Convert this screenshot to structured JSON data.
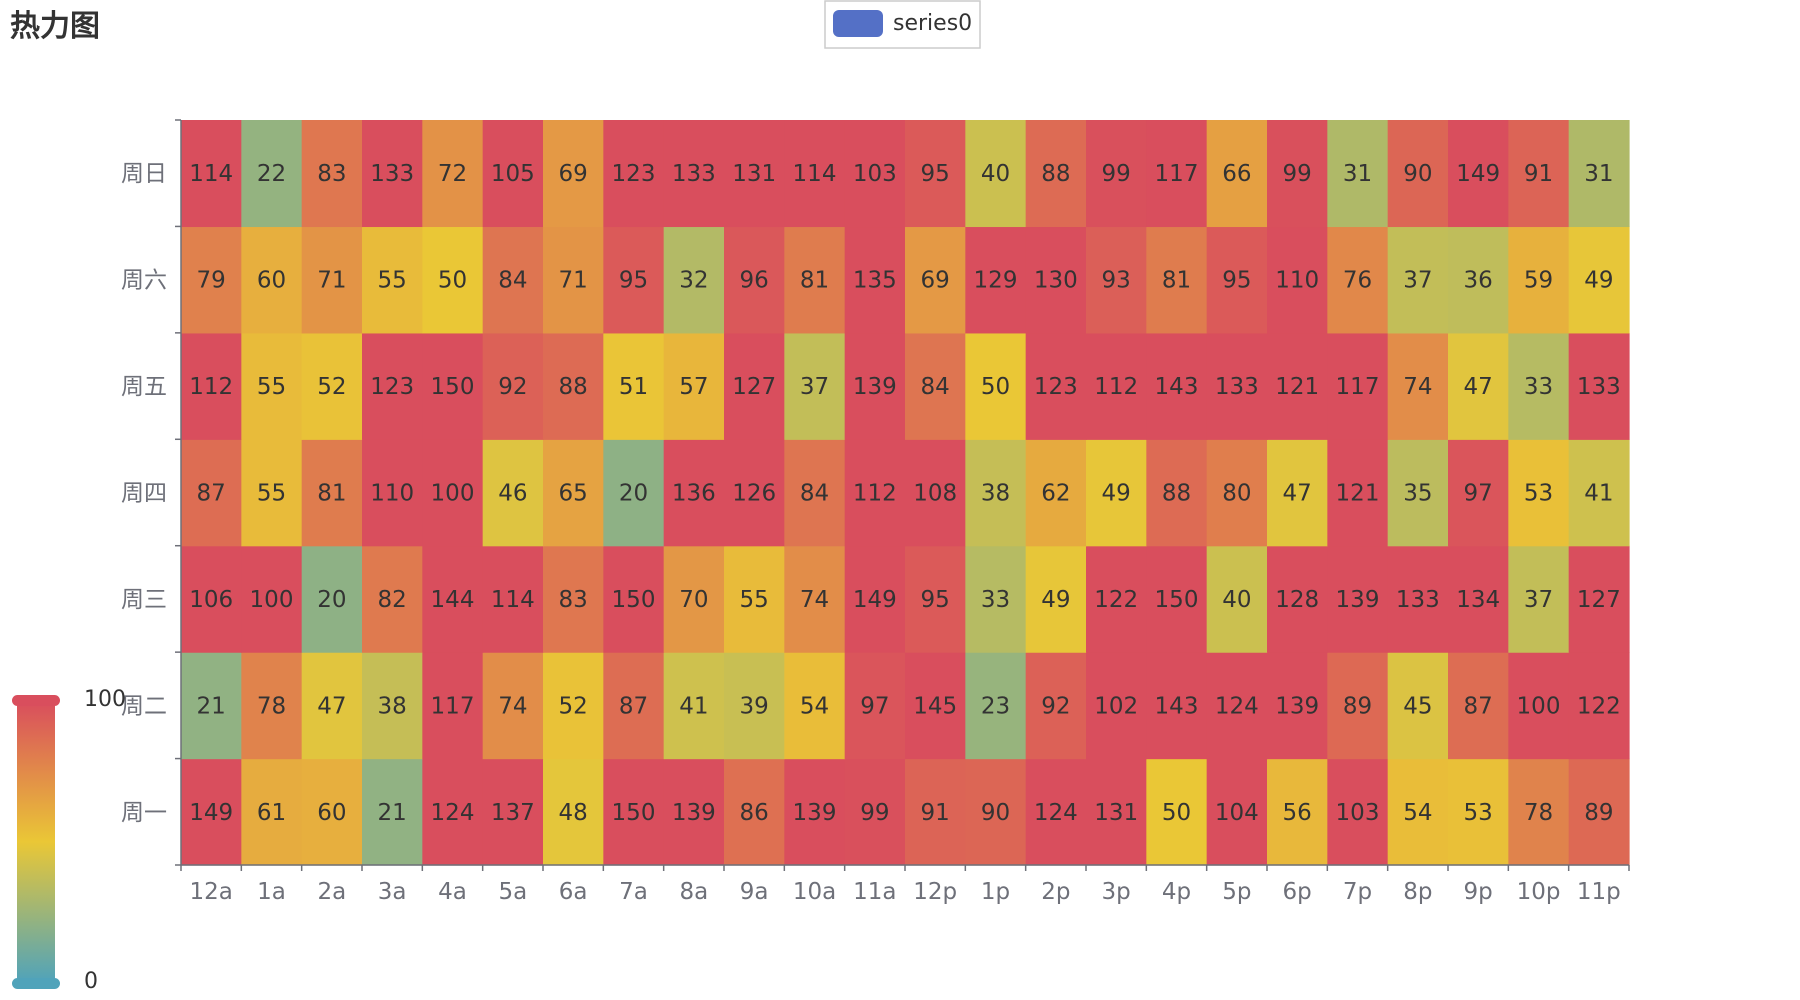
{
  "title": "热力图",
  "legend": {
    "label": "series0",
    "color": "#5470c6"
  },
  "chart_data": {
    "type": "heatmap",
    "title": "热力图",
    "x_categories": [
      "12a",
      "1a",
      "2a",
      "3a",
      "4a",
      "5a",
      "6a",
      "7a",
      "8a",
      "9a",
      "10a",
      "11a",
      "12p",
      "1p",
      "2p",
      "3p",
      "4p",
      "5p",
      "6p",
      "7p",
      "8p",
      "9p",
      "10p",
      "11p"
    ],
    "y_categories": [
      "周一",
      "周二",
      "周三",
      "周四",
      "周五",
      "周六",
      "周日"
    ],
    "series": [
      {
        "name": "series0",
        "rows": [
          [
            149,
            61,
            60,
            21,
            124,
            137,
            48,
            150,
            139,
            86,
            139,
            99,
            91,
            90,
            124,
            131,
            50,
            104,
            56,
            103,
            54,
            53,
            78,
            89
          ],
          [
            21,
            78,
            47,
            38,
            117,
            74,
            52,
            87,
            41,
            39,
            54,
            97,
            145,
            23,
            92,
            102,
            143,
            124,
            139,
            89,
            45,
            87,
            100,
            122
          ],
          [
            106,
            100,
            20,
            82,
            144,
            114,
            83,
            150,
            70,
            55,
            74,
            149,
            95,
            33,
            49,
            122,
            150,
            40,
            128,
            139,
            133,
            134,
            37,
            127
          ],
          [
            87,
            55,
            81,
            110,
            100,
            46,
            65,
            20,
            136,
            126,
            84,
            112,
            108,
            38,
            62,
            49,
            88,
            80,
            47,
            121,
            35,
            97,
            53,
            41
          ],
          [
            112,
            55,
            52,
            123,
            150,
            92,
            88,
            51,
            57,
            127,
            37,
            139,
            84,
            50,
            123,
            112,
            143,
            133,
            121,
            117,
            74,
            47,
            33,
            133
          ],
          [
            79,
            60,
            71,
            55,
            50,
            84,
            71,
            95,
            32,
            96,
            81,
            135,
            69,
            129,
            130,
            93,
            81,
            95,
            110,
            76,
            37,
            36,
            59,
            49
          ],
          [
            114,
            22,
            83,
            133,
            72,
            105,
            69,
            123,
            133,
            131,
            114,
            103,
            95,
            40,
            88,
            99,
            117,
            66,
            99,
            31,
            90,
            149,
            91,
            31
          ]
        ]
      }
    ],
    "visual_map": {
      "min": 0,
      "max": 100,
      "min_label": "0",
      "max_label": "100",
      "colors": [
        "#50a3ba",
        "#eac736",
        "#d94e5d"
      ]
    },
    "legend_position": "top-center"
  }
}
